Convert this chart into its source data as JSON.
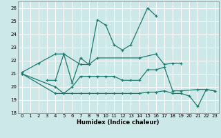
{
  "xlabel": "Humidex (Indice chaleur)",
  "xlim": [
    -0.5,
    23.5
  ],
  "ylim": [
    18,
    26.5
  ],
  "yticks": [
    18,
    19,
    20,
    21,
    22,
    23,
    24,
    25,
    26
  ],
  "xticks": [
    0,
    1,
    2,
    3,
    4,
    5,
    6,
    7,
    8,
    9,
    10,
    11,
    12,
    13,
    14,
    15,
    16,
    17,
    18,
    19,
    20,
    21,
    22,
    23
  ],
  "bg_color": "#cde8e8",
  "grid_color": "#ffffff",
  "line_color": "#1a7a6e",
  "lines": [
    {
      "x": [
        0,
        2,
        4,
        5,
        7,
        8,
        9,
        10,
        11,
        12,
        13,
        15,
        16
      ],
      "y": [
        21.1,
        21.8,
        22.5,
        22.5,
        21.7,
        21.7,
        25.1,
        24.7,
        23.2,
        22.8,
        23.2,
        26.0,
        25.4
      ]
    },
    {
      "x": [
        3,
        4,
        5,
        6,
        7,
        8,
        9,
        14,
        16,
        17,
        18,
        19
      ],
      "y": [
        20.5,
        20.5,
        22.5,
        20.3,
        22.2,
        21.7,
        22.2,
        22.2,
        22.5,
        21.7,
        21.8,
        21.8
      ]
    },
    {
      "x": [
        0,
        4,
        5,
        6,
        7,
        8,
        9,
        10,
        11,
        12,
        13,
        14,
        15,
        16,
        17,
        18,
        19,
        21,
        22,
        23
      ],
      "y": [
        21.0,
        20.0,
        19.5,
        20.0,
        20.8,
        20.8,
        20.8,
        20.8,
        20.8,
        20.5,
        20.5,
        20.5,
        21.3,
        21.3,
        21.5,
        19.7,
        19.7,
        19.8,
        19.8,
        19.7
      ]
    },
    {
      "x": [
        0,
        4,
        5,
        6,
        7,
        8,
        9,
        10,
        11,
        12,
        13,
        14,
        15,
        16,
        17,
        18,
        19,
        20,
        21,
        22,
        23
      ],
      "y": [
        21.0,
        19.5,
        19.5,
        19.5,
        19.5,
        19.5,
        19.5,
        19.5,
        19.5,
        19.5,
        19.5,
        19.5,
        19.6,
        19.6,
        19.7,
        19.5,
        19.5,
        19.3,
        18.5,
        19.8,
        19.7
      ]
    }
  ]
}
